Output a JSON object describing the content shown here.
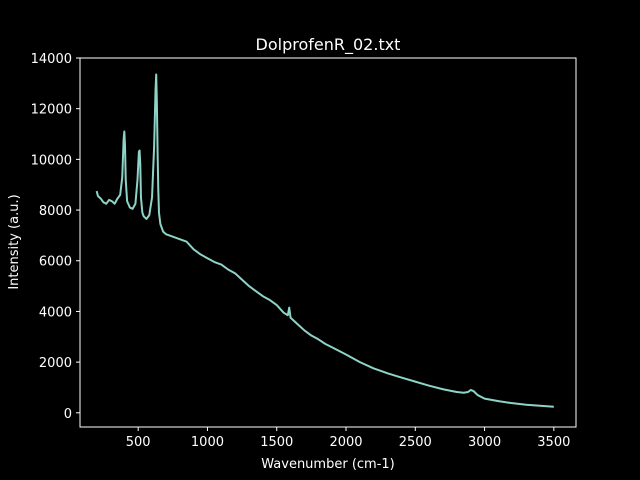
{
  "chart_data": {
    "type": "line",
    "title": "DolprofenR_02.txt",
    "xlabel": "Wavenumber (cm-1)",
    "ylabel": "Intensity (a.u.)",
    "xlim": [
      80,
      3660
    ],
    "ylim": [
      -560,
      14000
    ],
    "xticks": [
      500,
      1000,
      1500,
      2000,
      2500,
      3000,
      3500
    ],
    "yticks": [
      0,
      2000,
      4000,
      6000,
      8000,
      10000,
      12000,
      14000
    ],
    "grid": false,
    "legend": "none",
    "colors": {
      "background": "#000000",
      "axes": "#ffffff",
      "line": "#8dd3c7"
    },
    "series": [
      {
        "x": [
          200,
          210,
          230,
          250,
          270,
          290,
          310,
          330,
          350,
          370,
          385,
          395,
          400,
          405,
          410,
          420,
          440,
          460,
          480,
          495,
          505,
          510,
          515,
          520,
          530,
          540,
          560,
          580,
          600,
          615,
          625,
          630,
          635,
          640,
          645,
          650,
          660,
          680,
          700,
          750,
          800,
          850,
          900,
          950,
          1000,
          1050,
          1100,
          1150,
          1200,
          1250,
          1300,
          1350,
          1400,
          1450,
          1500,
          1550,
          1580,
          1590,
          1600,
          1650,
          1700,
          1750,
          1800,
          1850,
          1900,
          2000,
          2100,
          2200,
          2300,
          2400,
          2500,
          2600,
          2700,
          2800,
          2850,
          2880,
          2900,
          2920,
          2950,
          3000,
          3100,
          3200,
          3300,
          3400,
          3500
        ],
        "y": [
          8750,
          8550,
          8450,
          8300,
          8250,
          8400,
          8350,
          8250,
          8450,
          8600,
          9300,
          10800,
          11100,
          10500,
          9200,
          8350,
          8100,
          8050,
          8250,
          9200,
          10300,
          10350,
          9800,
          8500,
          7900,
          7750,
          7650,
          7800,
          8500,
          10500,
          12700,
          13350,
          12200,
          10300,
          8800,
          7900,
          7450,
          7150,
          7050,
          6950,
          6850,
          6750,
          6450,
          6250,
          6100,
          5950,
          5850,
          5650,
          5500,
          5250,
          5000,
          4800,
          4600,
          4450,
          4250,
          3950,
          3850,
          4150,
          3750,
          3500,
          3250,
          3050,
          2900,
          2720,
          2580,
          2300,
          2000,
          1750,
          1560,
          1390,
          1230,
          1070,
          930,
          820,
          790,
          820,
          900,
          860,
          700,
          560,
          460,
          380,
          320,
          280,
          240
        ]
      }
    ]
  }
}
